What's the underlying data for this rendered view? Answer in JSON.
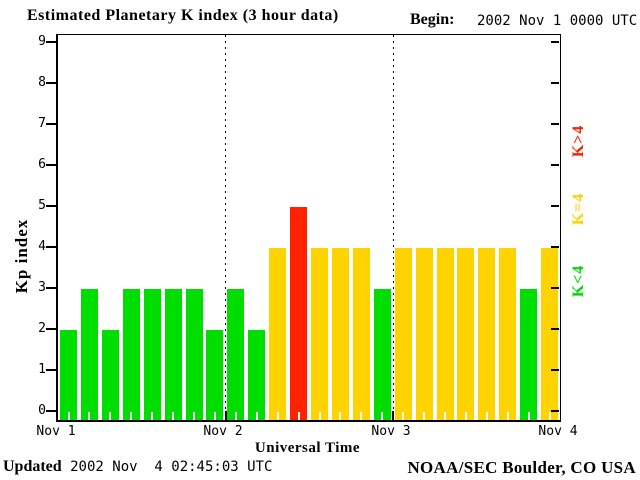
{
  "header": {
    "title": "Estimated Planetary K index (3 hour data)",
    "begin_label": "Begin:",
    "begin_value": "2002 Nov 1 0000 UTC"
  },
  "chart_data": {
    "type": "bar",
    "title": "Estimated Planetary K index (3 hour data)",
    "xlabel": "Universal Time",
    "ylabel": "Kp index",
    "ylim": [
      0,
      9
    ],
    "yticks": [
      0,
      1,
      2,
      3,
      4,
      5,
      6,
      7,
      8,
      9
    ],
    "grid": "dotted vertical lines at day boundaries",
    "hours_per_bar": 3,
    "x_day_labels": [
      "Nov 1",
      "Nov 2",
      "Nov 3",
      "Nov 4"
    ],
    "values": [
      2,
      3,
      2,
      3,
      3,
      3,
      3,
      2,
      3,
      2,
      4,
      5,
      4,
      4,
      4,
      3,
      4,
      4,
      4,
      4,
      4,
      4,
      3,
      4
    ],
    "color_rule": {
      "below_4": "#00DD00",
      "equal_4": "#FFD300",
      "above_4": "#FF2200"
    }
  },
  "legend": {
    "position": "right, rotated",
    "items": [
      {
        "label": "K>4",
        "color": "#FF2200"
      },
      {
        "label": "K=4",
        "color": "#FFD300"
      },
      {
        "label": "K<4",
        "color": "#00DD00"
      }
    ]
  },
  "footer": {
    "updated_label": "Updated",
    "updated_value": " 2002 Nov  4 02:45:03 UTC",
    "credit": "NOAA/SEC Boulder, CO USA"
  }
}
